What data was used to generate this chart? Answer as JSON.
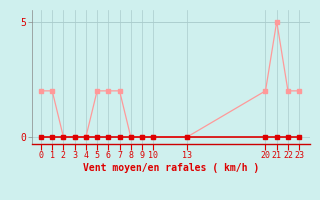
{
  "xlabel": "Vent moyen/en rafales ( km/h )",
  "background_color": "#cff0ee",
  "grid_color": "#aacccc",
  "line_mean_color": "#dd0000",
  "line_gust_color": "#ff9999",
  "x_values": [
    0,
    1,
    2,
    3,
    4,
    5,
    6,
    7,
    8,
    9,
    10,
    13,
    20,
    21,
    22,
    23
  ],
  "y_mean": [
    0,
    0,
    0,
    0,
    0,
    0,
    0,
    0,
    0,
    0,
    0,
    0,
    0,
    0,
    0,
    0
  ],
  "y_gust": [
    2,
    2,
    0,
    0,
    0,
    2,
    2,
    2,
    0,
    0,
    0,
    0,
    2,
    5,
    2,
    2
  ],
  "xlim": [
    -0.8,
    24.0
  ],
  "ylim": [
    -0.3,
    5.5
  ],
  "yticks": [
    0,
    5
  ],
  "xtick_labels": [
    "0",
    "1",
    "2",
    "3",
    "4",
    "5",
    "6",
    "7",
    "8",
    "9",
    "10",
    "13",
    "20",
    "21",
    "22",
    "23"
  ],
  "tick_fontsize": 6,
  "xlabel_fontsize": 7,
  "ylabel_fontsize": 7,
  "markersize": 2.5,
  "linewidth_mean": 1.2,
  "linewidth_gust": 0.9
}
